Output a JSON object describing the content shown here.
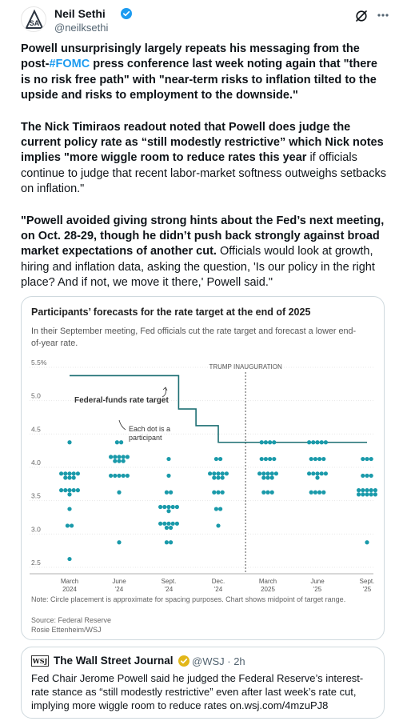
{
  "author": {
    "name": "Neil Sethi",
    "handle": "@neilksethi",
    "avatar_initials": "SA"
  },
  "post": {
    "p1_a": "Powell unsurprisingly largely repeats his messaging from the post-",
    "p1_hashtag": "#FOMC",
    "p1_b": " press conference last week noting again that \"there is no risk free path\" with \"near-term risks to inflation tilted to the upside and risks to employment to the downside.\"",
    "p2_a": "The Nick Timiraos readout noted that Powell does judge the current policy rate as “still modestly restrictive” which Nick notes implies ",
    "p2_b": "\"more wiggle room to reduce rates this year",
    "p2_c": " if officials continue to judge that recent labor-market softness outweighs setbacks on inflation.\"",
    "p3_a": "\"Powell avoided giving strong hints about the Fed’s next meeting, on Oct. 28-29, though he didn’t push back strongly against broad market expectations of another cut.",
    "p3_b": " Officials would look at growth, hiring and inflation data, asking the question, 'Is our policy in the right place? And if not, we move it there,' Powell said.\""
  },
  "chart": {
    "title": "Participants’ forecasts for the rate target at the end of 2025",
    "subtitle": "In their September meeting, Fed officials cut the rate target and forecast a lower end-of-year rate.",
    "note": "Note: Circle placement is approximate for spacing purposes. Chart shows midpoint of target range.",
    "source": "Source: Federal Reserve",
    "credit": "Rosie Ettenheim/WSJ",
    "inauguration_label": "TRUMP INAUGURATION",
    "ffr_label": "Federal-funds rate target",
    "dot_label_1": "Each dot is a",
    "dot_label_2": "participant",
    "colors": {
      "accent": "#1a9aaa",
      "step": "#1b6e72"
    }
  },
  "chart_data": {
    "type": "scatter",
    "title": "Participants’ forecasts for the rate target at the end of 2025",
    "ylim": [
      2.5,
      5.5
    ],
    "yticks": [
      "5.5%",
      "5.0",
      "4.5",
      "4.0",
      "3.5",
      "3.0",
      "2.5"
    ],
    "categories": [
      [
        "March",
        "2024"
      ],
      [
        "June",
        "'24"
      ],
      [
        "Sept.",
        "'24"
      ],
      [
        "Dec.",
        "'24"
      ],
      [
        "March",
        "2025"
      ],
      [
        "June",
        "'25"
      ],
      [
        "Sept.",
        "'25"
      ]
    ],
    "series": [
      {
        "meeting": 0,
        "values": [
          4.375,
          3.875,
          3.875,
          3.875,
          3.875,
          3.875,
          3.875,
          3.875,
          3.875,
          3.625,
          3.625,
          3.625,
          3.625,
          3.625,
          3.625,
          3.375,
          3.125,
          3.125,
          2.625
        ]
      },
      {
        "meeting": 1,
        "values": [
          4.375,
          4.375,
          4.125,
          4.125,
          4.125,
          4.125,
          4.125,
          4.125,
          4.125,
          4.125,
          3.875,
          3.875,
          3.875,
          3.875,
          3.875,
          3.625,
          2.875
        ]
      },
      {
        "meeting": 2,
        "values": [
          4.125,
          3.875,
          3.625,
          3.625,
          3.375,
          3.375,
          3.375,
          3.375,
          3.375,
          3.375,
          3.125,
          3.125,
          3.125,
          3.125,
          3.125,
          3.125,
          3.125,
          2.875,
          2.875
        ]
      },
      {
        "meeting": 3,
        "values": [
          4.125,
          4.125,
          3.875,
          3.875,
          3.875,
          3.875,
          3.875,
          3.875,
          3.875,
          3.875,
          3.625,
          3.625,
          3.625,
          3.375,
          3.375,
          3.125
        ]
      },
      {
        "meeting": 4,
        "values": [
          4.375,
          4.375,
          4.375,
          4.375,
          4.125,
          4.125,
          4.125,
          4.125,
          3.875,
          3.875,
          3.875,
          3.875,
          3.875,
          3.875,
          3.875,
          3.875,
          3.625,
          3.625,
          3.625
        ]
      },
      {
        "meeting": 5,
        "values": [
          4.375,
          4.375,
          4.375,
          4.375,
          4.375,
          4.125,
          4.125,
          4.125,
          4.125,
          3.875,
          3.875,
          3.875,
          3.875,
          3.875,
          3.875,
          3.625,
          3.625,
          3.625,
          3.625
        ]
      },
      {
        "meeting": 6,
        "values": [
          4.125,
          4.125,
          4.125,
          3.875,
          3.875,
          3.875,
          3.625,
          3.625,
          3.625,
          3.625,
          3.625,
          3.625,
          3.625,
          3.625,
          3.625,
          3.625,
          2.875
        ]
      }
    ],
    "ffr_target_line": [
      {
        "x": 0,
        "y": 5.375
      },
      {
        "x": 1,
        "y": 5.375
      },
      {
        "x": 2.2,
        "y": 5.375
      },
      {
        "x": 2.2,
        "y": 4.875
      },
      {
        "x": 2.55,
        "y": 4.875
      },
      {
        "x": 2.55,
        "y": 4.625
      },
      {
        "x": 3,
        "y": 4.625
      },
      {
        "x": 3,
        "y": 4.375
      },
      {
        "x": 6,
        "y": 4.375
      }
    ],
    "annotation": "TRUMP INAUGURATION"
  },
  "quote": {
    "name": "The Wall Street Journal",
    "handle_time": "@WSJ · 2h",
    "logo": "WSJ",
    "text": "Fed Chair Jerome Powell said he judged the Federal Reserve’s interest-rate stance as “still modestly restrictive” even after last week’s rate cut, implying more wiggle room to reduce rates on.wsj.com/4mzuPJ8"
  }
}
